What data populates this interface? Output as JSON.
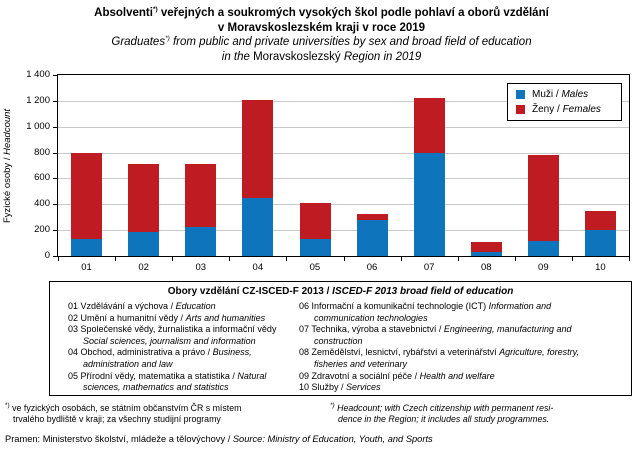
{
  "title": {
    "footnote_marker": "*)",
    "cz_line1_text": "Absolventi",
    "cz_line1_rest": " veřejných a soukromých  vysokých  škol podle pohlaví a oborů vzdělání",
    "cz_line2": "v Moravskoslezském  kraji v roce 2019",
    "en_line1_text": "Graduates",
    "en_line1_rest": " from public and private  universities by sex and  broad field of education",
    "en_line2_pre": "in the ",
    "en_line2_upright": "Moravskoslezský",
    "en_line2_post": " Region in 2019"
  },
  "chart_data": {
    "type": "bar",
    "stacked": true,
    "categories": [
      "01",
      "02",
      "03",
      "04",
      "05",
      "06",
      "07",
      "08",
      "09",
      "10"
    ],
    "series": [
      {
        "name_cz": "Muži / ",
        "name_en": "Males",
        "color": "#0E74BC",
        "values": [
          135,
          185,
          225,
          450,
          135,
          280,
          800,
          30,
          115,
          200
        ]
      },
      {
        "name_cz": "Ženy / ",
        "name_en": "Females",
        "color": "#BE1C22",
        "values": [
          660,
          525,
          485,
          760,
          275,
          45,
          425,
          75,
          665,
          145
        ]
      }
    ],
    "ylabel_cz": "Fyzické osoby / ",
    "ylabel_en": "Headcount",
    "ylim": [
      0,
      1400
    ],
    "ytick_step": 200,
    "ytick_labels": [
      "0",
      "200",
      "400",
      "600",
      "800",
      "1 000",
      "1 200",
      "1 400"
    ],
    "grid": true,
    "legend_position": "top-right"
  },
  "fields_box": {
    "header_cz": "Obory vzdělání CZ-ISCED-F 2013 / ",
    "header_en": "ISCED-F 2013 broad field of education",
    "left": [
      {
        "num": "01",
        "cz": "Vzdělávání a výchova",
        "sep": " / ",
        "en": "Education"
      },
      {
        "num": "02",
        "cz": "Umění a humanitní vědy",
        "sep": " / ",
        "en": "Arts and humanities"
      },
      {
        "num": "03",
        "cz": "Společenské vědy, žurnalistika a informační vědy",
        "sep": " ",
        "en": "Social sciences, journalism and information"
      },
      {
        "num": "04",
        "cz": "Obchod, administrativa a právo",
        "sep": " / ",
        "en": "Business, administration and law"
      },
      {
        "num": "05",
        "cz": "Přírodní vědy, matematika a statistika",
        "sep": " / ",
        "en": "Natural sciences, mathematics and statistics"
      }
    ],
    "right": [
      {
        "num": "06",
        "cz": "Informační a komunikační technologie (ICT)",
        "sep": " ",
        "en": "Information and communication technologies"
      },
      {
        "num": "07",
        "cz": "Technika, výroba a stavebnictví",
        "sep": " / ",
        "en": "Engineering, manufacturing and construction"
      },
      {
        "num": "08",
        "cz": "Zemědělství, lesnictví, rybářství a veterinářství",
        "sep": " ",
        "en": "Agriculture, forestry, fisheries and veterinary"
      },
      {
        "num": "09",
        "cz": "Zdravotní a sociální péče",
        "sep": " / ",
        "en": "Health and welfare"
      },
      {
        "num": "10",
        "cz": "Služby",
        "sep": " / ",
        "en": "Services"
      }
    ]
  },
  "footnotes": {
    "marker": "*)",
    "cz_line1": "ve fyzických osobách, se státním občanstvím ČR  s místem",
    "cz_line2": "trvalého bydliště v kraji;  za všechny studijní programy",
    "en_line1": "Headcount; with Czech citizenship with permanent resi-",
    "en_line2": "dence in the Region; it includes all study programmes.",
    "source_cz": "Pramen:  Ministerstvo školství, mládeže a tělovýchovy / ",
    "source_en": "Source: Ministry of Education, Youth, and Sports"
  }
}
